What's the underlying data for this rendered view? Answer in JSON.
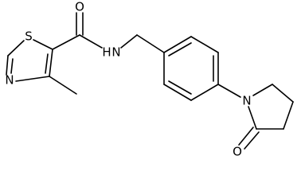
{
  "atoms": [
    {
      "label": "O"
    },
    {
      "label": "S"
    },
    {
      "label": "N"
    },
    {
      "label": "N"
    },
    {
      "label": "H"
    },
    {
      "label": "N"
    },
    {
      "label": "O"
    }
  ]
}
